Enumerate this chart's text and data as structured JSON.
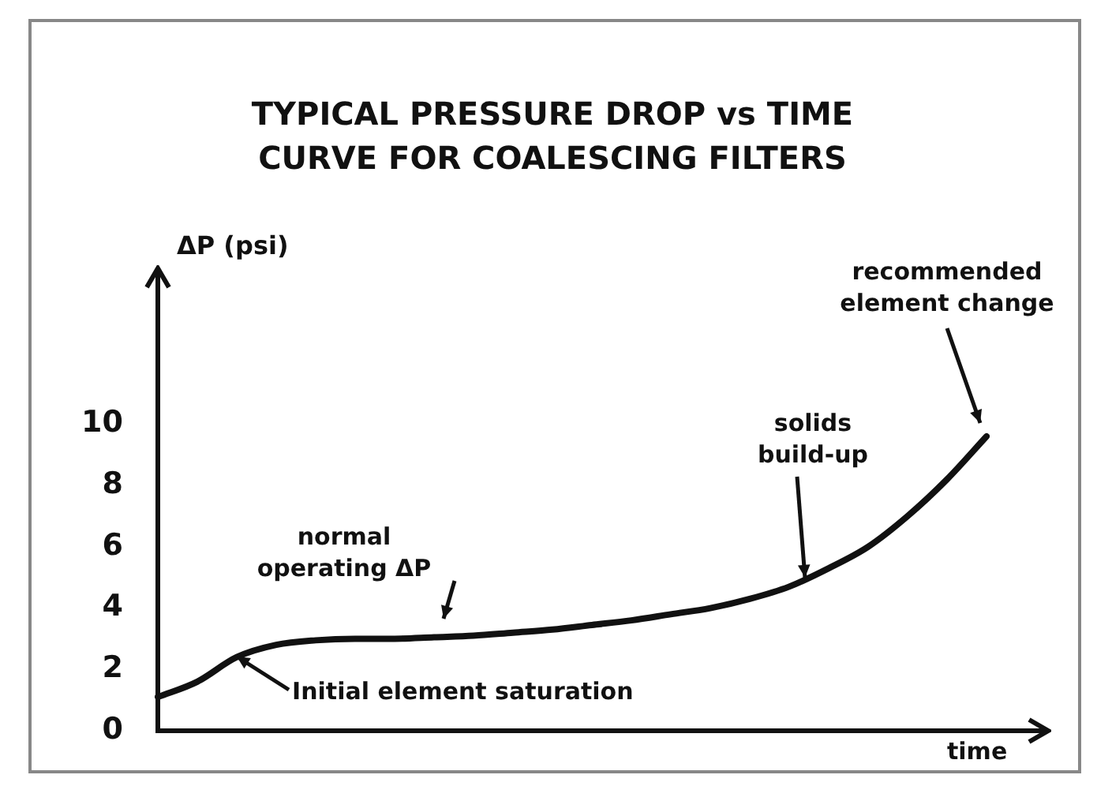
{
  "chart_data": {
    "type": "line",
    "title": "TYPICAL PRESSURE DROP vs TIME CURVE FOR COALESCING FILTERS",
    "ylabel": "ΔP (psi)",
    "xlabel": "time",
    "categories": [
      null,
      null,
      null,
      null,
      null,
      null,
      null,
      null,
      null,
      null,
      null,
      null,
      null,
      null,
      null,
      null,
      null,
      null,
      null,
      null,
      null,
      null
    ],
    "values": [
      1.1,
      1.6,
      2.4,
      2.8,
      2.95,
      3.0,
      3.0,
      3.05,
      3.1,
      3.2,
      3.3,
      3.45,
      3.6,
      3.8,
      4.0,
      4.3,
      4.7,
      5.3,
      6.0,
      7.0,
      8.2,
      9.6
    ],
    "color": "#111111",
    "ylim": [
      0,
      14
    ],
    "yticks": [
      0,
      2,
      4,
      6,
      8,
      10
    ],
    "tick_labels": "y",
    "grid": false,
    "legend": false,
    "marker": "none",
    "annotations": [
      "normal operating ΔP",
      "Initial element saturation",
      "solids build-up",
      "recommended element change"
    ]
  }
}
